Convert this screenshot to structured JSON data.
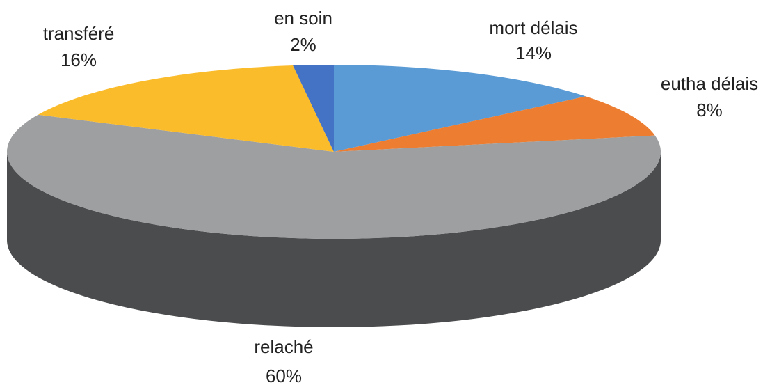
{
  "chart_data": {
    "type": "pie3d",
    "categories": [
      "mort délais",
      "eutha délais",
      "relaché",
      "transféré",
      "en soin"
    ],
    "values": [
      14,
      8,
      60,
      16,
      2
    ],
    "value_labels": [
      "14%",
      "8%",
      "60%",
      "16%",
      "2%"
    ],
    "colors": [
      "#5b9bd5",
      "#ed7d31",
      "#9d9fa0",
      "#fbbc2c",
      "#4472c4"
    ]
  }
}
